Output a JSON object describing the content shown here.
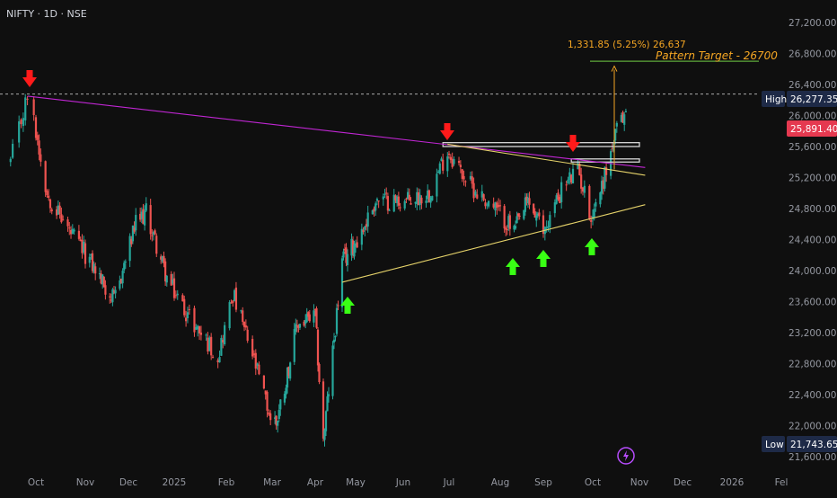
{
  "header": {
    "symbol_label": "NIFTY · 1D · NSE"
  },
  "colors": {
    "background": "#0f0f0f",
    "up_candle": "#26a69a",
    "down_candle": "#ef5350",
    "resistance_line": "#c026d3",
    "support_line": "#e6d36a",
    "target_color": "#f5a623",
    "target_line": "#5fa83a",
    "arrow_down": "#ff1a1a",
    "arrow_up": "#39ff14",
    "high_tag": "#1e2a47",
    "last_tag": "#e53950",
    "low_tag": "#1e2a47"
  },
  "chart_data": {
    "type": "candlestick",
    "title": "NIFTY · 1D · NSE",
    "x_tick_labels": [
      "Oct",
      "Nov",
      "Dec",
      "2025",
      "Feb",
      "Mar",
      "Apr",
      "May",
      "Jun",
      "Jul",
      "Aug",
      "Sep",
      "Oct",
      "Nov",
      "Dec",
      "2026",
      "Fel"
    ],
    "y_tick_labels": [
      "27,200.00",
      "26,800.00",
      "26,400.00",
      "26,000.00",
      "25,600.00",
      "25,200.00",
      "24,800.00",
      "24,400.00",
      "24,000.00",
      "23,600.00",
      "23,200.00",
      "22,800.00",
      "22,400.00",
      "22,000.00",
      "21,600.00"
    ],
    "y_ticks": [
      27200,
      26800,
      26400,
      26000,
      25600,
      25200,
      24800,
      24400,
      24000,
      23600,
      23200,
      22800,
      22400,
      22000,
      21600
    ],
    "ylim": [
      21440,
      27450
    ],
    "series_close": [
      [
        "2024-09-19",
        25400
      ],
      [
        "2024-09-27",
        26250
      ],
      [
        "2024-10-08",
        25000
      ],
      [
        "2024-10-22",
        24500
      ],
      [
        "2024-11-05",
        24100
      ],
      [
        "2024-11-21",
        23600
      ],
      [
        "2024-12-06",
        24600
      ],
      [
        "2024-12-13",
        24750
      ],
      [
        "2024-12-27",
        23900
      ],
      [
        "2025-01-13",
        23300
      ],
      [
        "2025-01-27",
        22900
      ],
      [
        "2025-02-05",
        23700
      ],
      [
        "2025-02-17",
        22900
      ],
      [
        "2025-02-28",
        22100
      ],
      [
        "2025-03-04",
        22050
      ],
      [
        "2025-03-10",
        22500
      ],
      [
        "2025-03-19",
        23300
      ],
      [
        "2025-04-01",
        23400
      ],
      [
        "2025-04-07",
        21800
      ],
      [
        "2025-04-21",
        24100
      ],
      [
        "2025-05-05",
        24500
      ],
      [
        "2025-05-14",
        24900
      ],
      [
        "2025-06-05",
        24900
      ],
      [
        "2025-06-18",
        25000
      ],
      [
        "2025-06-30",
        25550
      ],
      [
        "2025-07-14",
        25100
      ],
      [
        "2025-07-31",
        24750
      ],
      [
        "2025-08-11",
        24500
      ],
      [
        "2025-08-21",
        24900
      ],
      [
        "2025-09-01",
        24500
      ],
      [
        "2025-09-12",
        25050
      ],
      [
        "2025-09-22",
        25300
      ],
      [
        "2025-09-30",
        24700
      ],
      [
        "2025-10-07",
        25100
      ],
      [
        "2025-10-17",
        25800
      ],
      [
        "2025-10-23",
        26050
      ]
    ],
    "all_time_high": {
      "label": "High",
      "value": "26,277.35",
      "number": 26277.35
    },
    "last_price": {
      "value": "25,891.40",
      "number": 25891.4
    },
    "period_low": {
      "label": "Low",
      "value": "21,743.65",
      "number": 21743.65
    },
    "trendlines": [
      {
        "name": "descending-resistance",
        "from": [
          "2024-09-27",
          26250
        ],
        "to": [
          "2025-11-05",
          25330
        ]
      },
      {
        "name": "falling-upper-line",
        "from": [
          "2025-06-30",
          25630
        ],
        "to": [
          "2025-11-05",
          25230
        ]
      },
      {
        "name": "ascending-support",
        "from": [
          "2025-04-21",
          23850
        ],
        "to": [
          "2025-11-05",
          24850
        ]
      }
    ],
    "resistance_zones": [
      {
        "from": "2025-06-27",
        "to": "2025-11-01",
        "low": 25600,
        "high": 25650
      },
      {
        "from": "2025-09-18",
        "to": "2025-11-01",
        "low": 25400,
        "high": 25440
      }
    ],
    "annotations": {
      "measure_label": "1,331.85 (5.25%) 26,637",
      "pattern_target_label": "Pattern Target - 26700",
      "pattern_target_value": 26700,
      "measure_from": 25305,
      "measure_to": 26637
    },
    "reference_line": {
      "value": 26277.35,
      "style": "dashed"
    },
    "arrows": [
      {
        "direction": "down",
        "date": "2024-09-27"
      },
      {
        "direction": "down",
        "date": "2025-06-30"
      },
      {
        "direction": "down",
        "date": "2025-09-19"
      },
      {
        "direction": "up",
        "date": "2025-04-21"
      },
      {
        "direction": "up",
        "date": "2025-08-08"
      },
      {
        "direction": "up",
        "date": "2025-08-29"
      },
      {
        "direction": "up",
        "date": "2025-10-01"
      }
    ]
  }
}
